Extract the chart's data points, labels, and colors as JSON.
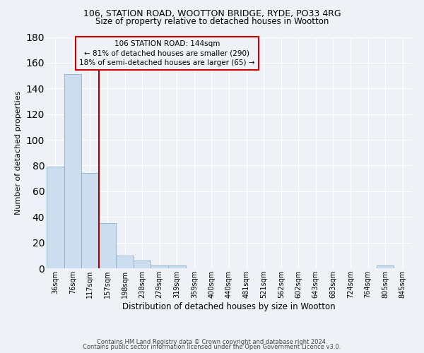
{
  "title1": "106, STATION ROAD, WOOTTON BRIDGE, RYDE, PO33 4RG",
  "title2": "Size of property relative to detached houses in Wootton",
  "xlabel": "Distribution of detached houses by size in Wootton",
  "ylabel": "Number of detached properties",
  "bin_labels": [
    "36sqm",
    "76sqm",
    "117sqm",
    "157sqm",
    "198sqm",
    "238sqm",
    "279sqm",
    "319sqm",
    "359sqm",
    "400sqm",
    "440sqm",
    "481sqm",
    "521sqm",
    "562sqm",
    "602sqm",
    "643sqm",
    "683sqm",
    "724sqm",
    "764sqm",
    "805sqm",
    "845sqm"
  ],
  "bar_heights": [
    79,
    151,
    74,
    35,
    10,
    6,
    2,
    2,
    0,
    0,
    0,
    0,
    0,
    0,
    0,
    0,
    0,
    0,
    0,
    2,
    0
  ],
  "bar_color": "#ccdded",
  "bar_edge_color": "#8ab0cc",
  "vline_color": "#aa0000",
  "vline_pos": 2.5,
  "ylim": [
    0,
    180
  ],
  "yticks": [
    0,
    20,
    40,
    60,
    80,
    100,
    120,
    140,
    160,
    180
  ],
  "annotation_line1": "106 STATION ROAD: 144sqm",
  "annotation_line2": "← 81% of detached houses are smaller (290)",
  "annotation_line3": "18% of semi-detached houses are larger (65) →",
  "annotation_box_color": "#cc0000",
  "footer1": "Contains HM Land Registry data © Crown copyright and database right 2024.",
  "footer2": "Contains public sector information licensed under the Open Government Licence v3.0.",
  "background_color": "#eef2f6",
  "grid_color": "#ffffff",
  "title_fontsize": 9,
  "subtitle_fontsize": 8.5,
  "tick_fontsize": 7,
  "ylabel_fontsize": 8,
  "xlabel_fontsize": 8.5,
  "annotation_fontsize": 7.5,
  "footer_fontsize": 6
}
